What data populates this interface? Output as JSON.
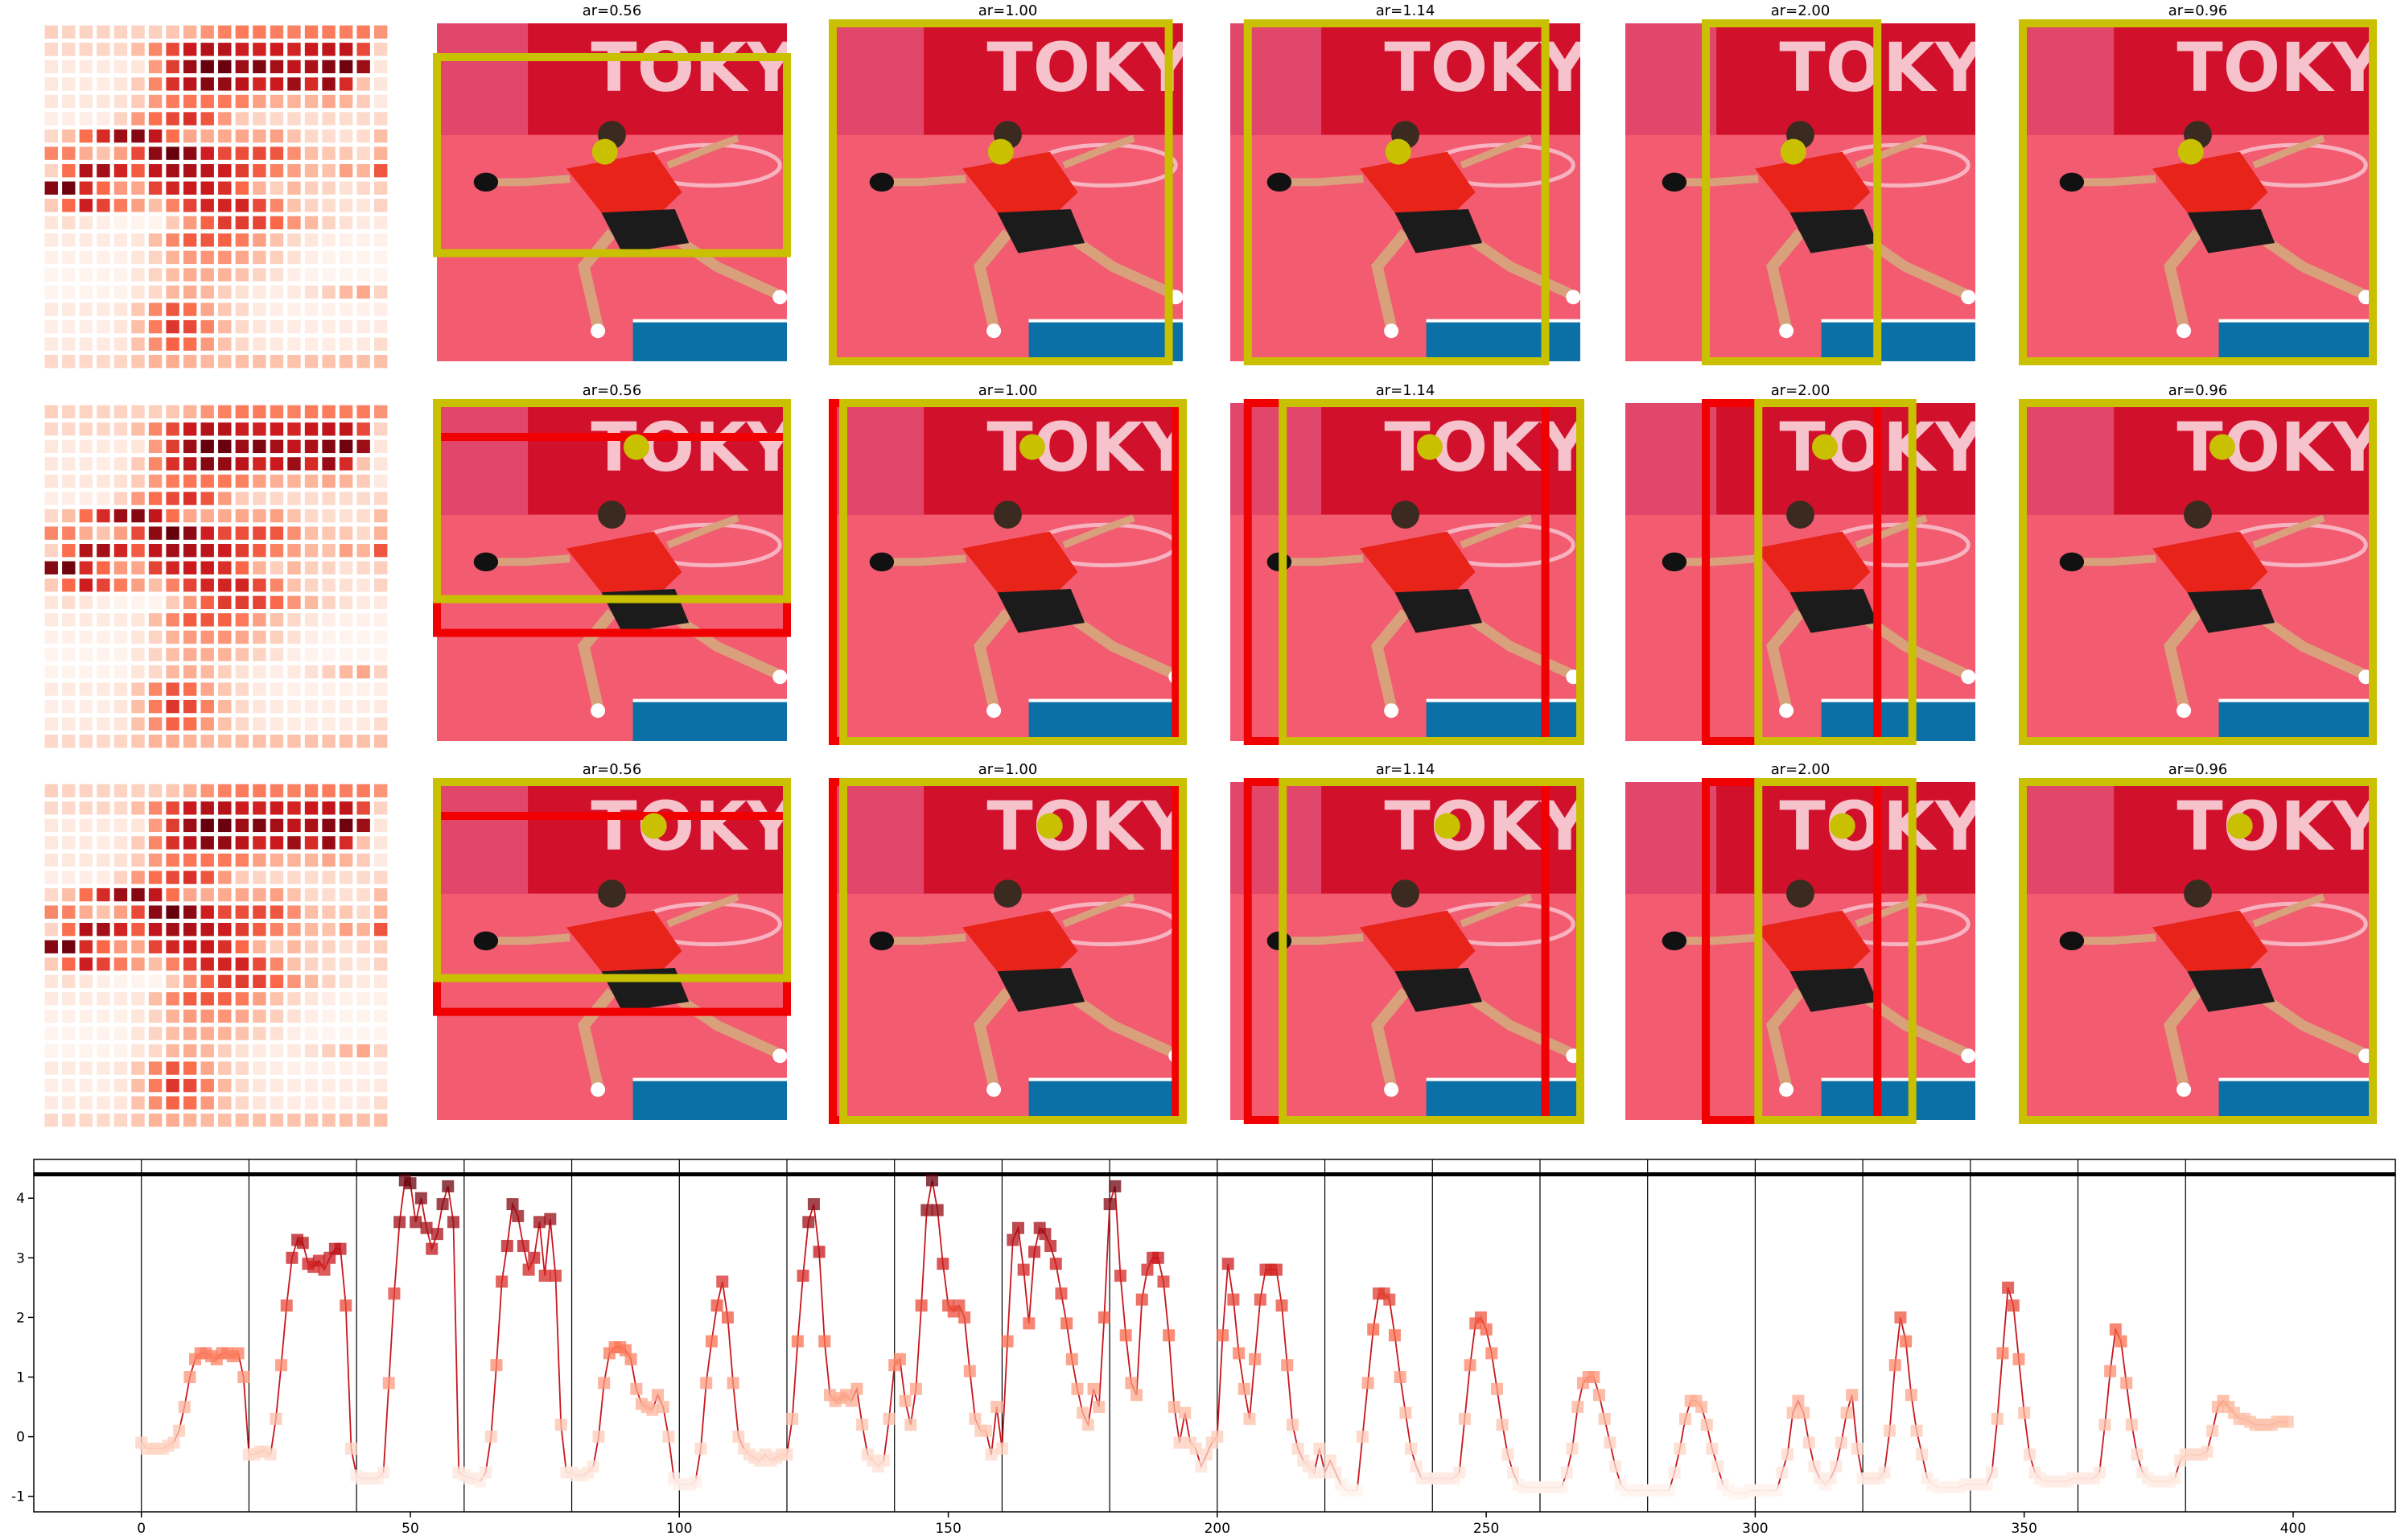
{
  "panels": {
    "titles": [
      "ar=0.56",
      "ar=1.00",
      "ar=1.14",
      "ar=2.00",
      "ar=0.96"
    ],
    "photo_text": "TOKYO"
  },
  "chart_data": {
    "type": "line",
    "color": "#c8161d",
    "marker": "square",
    "colormap": "Reds",
    "xlim": [
      -20,
      419
    ],
    "ylim": [
      -1.26,
      4.65
    ],
    "xticks": [
      0,
      50,
      100,
      150,
      200,
      250,
      300,
      350,
      400
    ],
    "yticks": [
      -1,
      0,
      1,
      2,
      3,
      4
    ],
    "vlines": [
      0,
      20,
      40,
      60,
      80,
      100,
      120,
      140,
      160,
      180,
      200,
      220,
      240,
      260,
      280,
      300,
      320,
      340,
      360,
      380
    ],
    "hline": 4.4,
    "x": [
      0,
      1,
      2,
      3,
      4,
      5,
      6,
      7,
      8,
      9,
      10,
      11,
      12,
      13,
      14,
      15,
      16,
      17,
      18,
      19,
      20,
      21,
      22,
      23,
      24,
      25,
      26,
      27,
      28,
      29,
      30,
      31,
      32,
      33,
      34,
      35,
      36,
      37,
      38,
      39,
      40,
      41,
      42,
      43,
      44,
      45,
      46,
      47,
      48,
      49,
      50,
      51,
      52,
      53,
      54,
      55,
      56,
      57,
      58,
      59,
      60,
      61,
      62,
      63,
      64,
      65,
      66,
      67,
      68,
      69,
      70,
      71,
      72,
      73,
      74,
      75,
      76,
      77,
      78,
      79,
      80,
      81,
      82,
      83,
      84,
      85,
      86,
      87,
      88,
      89,
      90,
      91,
      92,
      93,
      94,
      95,
      96,
      97,
      98,
      99,
      100,
      101,
      102,
      103,
      104,
      105,
      106,
      107,
      108,
      109,
      110,
      111,
      112,
      113,
      114,
      115,
      116,
      117,
      118,
      119,
      120,
      121,
      122,
      123,
      124,
      125,
      126,
      127,
      128,
      129,
      130,
      131,
      132,
      133,
      134,
      135,
      136,
      137,
      138,
      139,
      140,
      141,
      142,
      143,
      144,
      145,
      146,
      147,
      148,
      149,
      150,
      151,
      152,
      153,
      154,
      155,
      156,
      157,
      158,
      159,
      160,
      161,
      162,
      163,
      164,
      165,
      166,
      167,
      168,
      169,
      170,
      171,
      172,
      173,
      174,
      175,
      176,
      177,
      178,
      179,
      180,
      181,
      182,
      183,
      184,
      185,
      186,
      187,
      188,
      189,
      190,
      191,
      192,
      193,
      194,
      195,
      196,
      197,
      198,
      199,
      200,
      201,
      202,
      203,
      204,
      205,
      206,
      207,
      208,
      209,
      210,
      211,
      212,
      213,
      214,
      215,
      216,
      217,
      218,
      219,
      220,
      221,
      222,
      223,
      224,
      225,
      226,
      227,
      228,
      229,
      230,
      231,
      232,
      233,
      234,
      235,
      236,
      237,
      238,
      239,
      240,
      241,
      242,
      243,
      244,
      245,
      246,
      247,
      248,
      249,
      250,
      251,
      252,
      253,
      254,
      255,
      256,
      257,
      258,
      259,
      260,
      261,
      262,
      263,
      264,
      265,
      266,
      267,
      268,
      269,
      270,
      271,
      272,
      273,
      274,
      275,
      276,
      277,
      278,
      279,
      280,
      281,
      282,
      283,
      284,
      285,
      286,
      287,
      288,
      289,
      290,
      291,
      292,
      293,
      294,
      295,
      296,
      297,
      298,
      299,
      300,
      301,
      302,
      303,
      304,
      305,
      306,
      307,
      308,
      309,
      310,
      311,
      312,
      313,
      314,
      315,
      316,
      317,
      318,
      319,
      320,
      321,
      322,
      323,
      324,
      325,
      326,
      327,
      328,
      329,
      330,
      331,
      332,
      333,
      334,
      335,
      336,
      337,
      338,
      339,
      340,
      341,
      342,
      343,
      344,
      345,
      346,
      347,
      348,
      349,
      350,
      351,
      352,
      353,
      354,
      355,
      356,
      357,
      358,
      359,
      360,
      361,
      362,
      363,
      364,
      365,
      366,
      367,
      368,
      369,
      370,
      371,
      372,
      373,
      374,
      375,
      376,
      377,
      378,
      379,
      380,
      381,
      382,
      383,
      384,
      385,
      386,
      387,
      388,
      389,
      390,
      391,
      392,
      393,
      394,
      395,
      396,
      397,
      398,
      399
    ],
    "values": [
      -0.1,
      -0.2,
      -0.2,
      -0.2,
      -0.2,
      -0.15,
      -0.1,
      0.1,
      0.5,
      1.0,
      1.3,
      1.4,
      1.4,
      1.35,
      1.3,
      1.4,
      1.4,
      1.35,
      1.4,
      1.0,
      -0.3,
      -0.3,
      -0.25,
      -0.25,
      -0.3,
      0.3,
      1.2,
      2.2,
      3.0,
      3.3,
      3.25,
      2.9,
      2.85,
      2.95,
      2.8,
      3.0,
      3.15,
      3.15,
      2.2,
      -0.2,
      -0.65,
      -0.7,
      -0.7,
      -0.7,
      -0.7,
      -0.6,
      0.9,
      2.4,
      3.6,
      4.3,
      4.25,
      3.6,
      4.0,
      3.5,
      3.15,
      3.4,
      3.9,
      4.2,
      3.6,
      -0.6,
      -0.65,
      -0.7,
      -0.7,
      -0.75,
      -0.6,
      0.0,
      1.2,
      2.6,
      3.2,
      3.9,
      3.7,
      3.2,
      2.8,
      3.0,
      3.6,
      2.7,
      3.65,
      2.7,
      0.2,
      -0.6,
      -0.6,
      -0.65,
      -0.65,
      -0.6,
      -0.5,
      0.0,
      0.9,
      1.4,
      1.5,
      1.5,
      1.45,
      1.3,
      0.8,
      0.55,
      0.5,
      0.45,
      0.7,
      0.5,
      0.0,
      -0.7,
      -0.8,
      -0.8,
      -0.8,
      -0.75,
      -0.2,
      0.9,
      1.6,
      2.2,
      2.6,
      2.0,
      0.9,
      0.0,
      -0.2,
      -0.3,
      -0.35,
      -0.4,
      -0.3,
      -0.4,
      -0.35,
      -0.3,
      -0.3,
      0.3,
      1.6,
      2.7,
      3.6,
      3.9,
      3.1,
      1.6,
      0.7,
      0.6,
      0.65,
      0.7,
      0.6,
      0.8,
      0.2,
      -0.3,
      -0.4,
      -0.5,
      -0.4,
      0.3,
      1.2,
      1.3,
      0.6,
      0.2,
      0.8,
      2.2,
      3.8,
      4.3,
      3.8,
      2.9,
      2.2,
      2.1,
      2.2,
      2.0,
      1.1,
      0.3,
      0.1,
      0.1,
      -0.3,
      0.5,
      -0.2,
      1.6,
      3.3,
      3.5,
      2.8,
      1.9,
      3.1,
      3.5,
      3.4,
      3.2,
      2.9,
      2.4,
      1.9,
      1.3,
      0.8,
      0.4,
      0.2,
      0.8,
      0.5,
      2.0,
      3.9,
      4.2,
      2.7,
      1.7,
      0.9,
      0.7,
      2.3,
      2.8,
      3.0,
      3.0,
      2.6,
      1.7,
      0.5,
      -0.1,
      0.4,
      -0.1,
      -0.2,
      -0.5,
      -0.3,
      -0.1,
      0.0,
      1.7,
      2.9,
      2.3,
      1.4,
      0.8,
      0.3,
      1.3,
      2.3,
      2.8,
      2.8,
      2.8,
      2.2,
      1.2,
      0.2,
      -0.2,
      -0.4,
      -0.5,
      -0.6,
      -0.2,
      -0.6,
      -0.4,
      -0.6,
      -0.8,
      -0.9,
      -0.9,
      -0.9,
      0.0,
      0.9,
      1.8,
      2.4,
      2.4,
      2.3,
      1.7,
      1.0,
      0.4,
      -0.2,
      -0.5,
      -0.7,
      -0.7,
      -0.7,
      -0.7,
      -0.7,
      -0.7,
      -0.7,
      -0.6,
      0.3,
      1.2,
      1.9,
      2.0,
      1.8,
      1.4,
      0.8,
      0.2,
      -0.3,
      -0.6,
      -0.8,
      -0.85,
      -0.85,
      -0.85,
      -0.85,
      -0.85,
      -0.85,
      -0.85,
      -0.85,
      -0.6,
      -0.2,
      0.5,
      0.9,
      1.0,
      1.0,
      0.7,
      0.3,
      -0.1,
      -0.5,
      -0.8,
      -0.9,
      -0.9,
      -0.9,
      -0.9,
      -0.9,
      -0.9,
      -0.9,
      -0.9,
      -0.9,
      -0.6,
      -0.2,
      0.3,
      0.6,
      0.6,
      0.5,
      0.2,
      -0.2,
      -0.5,
      -0.8,
      -0.9,
      -0.95,
      -0.95,
      -0.95,
      -0.9,
      -0.9,
      -0.9,
      -0.9,
      -0.9,
      -0.9,
      -0.6,
      -0.3,
      0.4,
      0.6,
      0.4,
      -0.1,
      -0.5,
      -0.7,
      -0.8,
      -0.7,
      -0.5,
      -0.1,
      0.4,
      0.7,
      -0.2,
      -0.7,
      -0.7,
      -0.7,
      -0.7,
      -0.6,
      0.1,
      1.2,
      2.0,
      1.6,
      0.7,
      0.1,
      -0.3,
      -0.7,
      -0.8,
      -0.85,
      -0.85,
      -0.85,
      -0.85,
      -0.85,
      -0.8,
      -0.8,
      -0.8,
      -0.8,
      -0.8,
      -0.6,
      0.3,
      1.4,
      2.5,
      2.2,
      1.3,
      0.4,
      -0.3,
      -0.6,
      -0.7,
      -0.75,
      -0.75,
      -0.75,
      -0.75,
      -0.75,
      -0.7,
      -0.7,
      -0.7,
      -0.7,
      -0.7,
      -0.6,
      0.2,
      1.1,
      1.8,
      1.6,
      0.9,
      0.2,
      -0.3,
      -0.6,
      -0.7,
      -0.75,
      -0.75,
      -0.75,
      -0.75,
      -0.7,
      -0.4,
      -0.3,
      -0.3,
      -0.3,
      -0.3,
      -0.25,
      0.1,
      0.5,
      0.6,
      0.5,
      0.4,
      0.3,
      0.3,
      0.25,
      0.2,
      0.2,
      0.2,
      0.2,
      0.25,
      0.25,
      0.25
    ]
  }
}
